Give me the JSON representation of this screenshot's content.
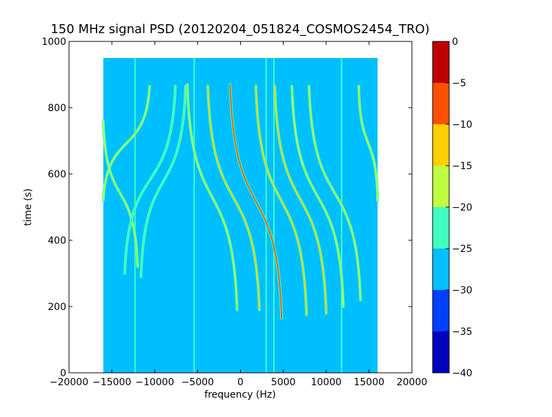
{
  "chart_data": {
    "type": "heatmap",
    "title": "150 MHz signal PSD (20120204_051824_COSMOS2454_TRO)",
    "xlabel": "frequency (Hz)",
    "ylabel": "time (s)",
    "xlim": [
      -20000,
      20000
    ],
    "ylim": [
      0,
      1000
    ],
    "x_ticks": [
      -20000,
      -15000,
      -10000,
      -5000,
      0,
      5000,
      10000,
      15000,
      20000
    ],
    "x_tick_labels": [
      "−20000",
      "−15000",
      "−10000",
      "−5000",
      "0",
      "5000",
      "10000",
      "15000",
      "20000"
    ],
    "y_ticks": [
      0,
      200,
      400,
      600,
      800,
      1000
    ],
    "y_tick_labels": [
      "0",
      "200",
      "400",
      "600",
      "800",
      "1000"
    ],
    "data_extent": {
      "x": [
        -16000,
        16000
      ],
      "y": [
        0,
        950
      ]
    },
    "background_level": -27.5,
    "colorbar": {
      "levels": [
        0,
        -5,
        -10,
        -15,
        -20,
        -25,
        -30,
        -35,
        -40
      ],
      "level_labels": [
        "0",
        "−5",
        "−10",
        "−15",
        "−20",
        "−25",
        "−30",
        "−35",
        "−40"
      ],
      "colors": [
        "#0000bf",
        "#0040ff",
        "#00bfff",
        "#40ffbf",
        "#bfff40",
        "#ffcf00",
        "#ff5000",
        "#bf0000"
      ]
    },
    "vertical_lines": [
      {
        "x": -5400,
        "level": -22
      },
      {
        "x": -12300,
        "level": -22
      },
      {
        "x": 3900,
        "level": -22
      },
      {
        "x": 3000,
        "level": -25
      },
      {
        "x": 11800,
        "level": -25
      }
    ],
    "traces": [
      {
        "x_top": -10600,
        "y_top": 865,
        "x_bottom": -16000,
        "y_bottom": 520,
        "level": -20
      },
      {
        "x_top": -16000,
        "y_top": 760,
        "x_bottom": -12000,
        "y_bottom": 320,
        "level": -18
      },
      {
        "x_top": -7600,
        "y_top": 865,
        "x_bottom": -13500,
        "y_bottom": 300,
        "level": -22
      },
      {
        "x_top": -6400,
        "y_top": 865,
        "x_bottom": -11600,
        "y_bottom": 290,
        "level": -22
      },
      {
        "x_top": -6200,
        "y_top": 870,
        "x_bottom": -400,
        "y_bottom": 190,
        "level": -17
      },
      {
        "x_top": -3800,
        "y_top": 865,
        "x_bottom": 2200,
        "y_bottom": 190,
        "level": -12
      },
      {
        "x_top": -1200,
        "y_top": 870,
        "x_bottom": 4800,
        "y_bottom": 165,
        "level": -8
      },
      {
        "x_top": 1800,
        "y_top": 865,
        "x_bottom": 7700,
        "y_bottom": 175,
        "level": -12
      },
      {
        "x_top": 4000,
        "y_top": 865,
        "x_bottom": 10000,
        "y_bottom": 180,
        "level": -15
      },
      {
        "x_top": 6000,
        "y_top": 865,
        "x_bottom": 12000,
        "y_bottom": 200,
        "level": -18
      },
      {
        "x_top": 8000,
        "y_top": 865,
        "x_bottom": 14000,
        "y_bottom": 220,
        "level": -20
      },
      {
        "x_top": 13800,
        "y_top": 865,
        "x_bottom": 16000,
        "y_bottom": 520,
        "level": -18
      }
    ]
  }
}
